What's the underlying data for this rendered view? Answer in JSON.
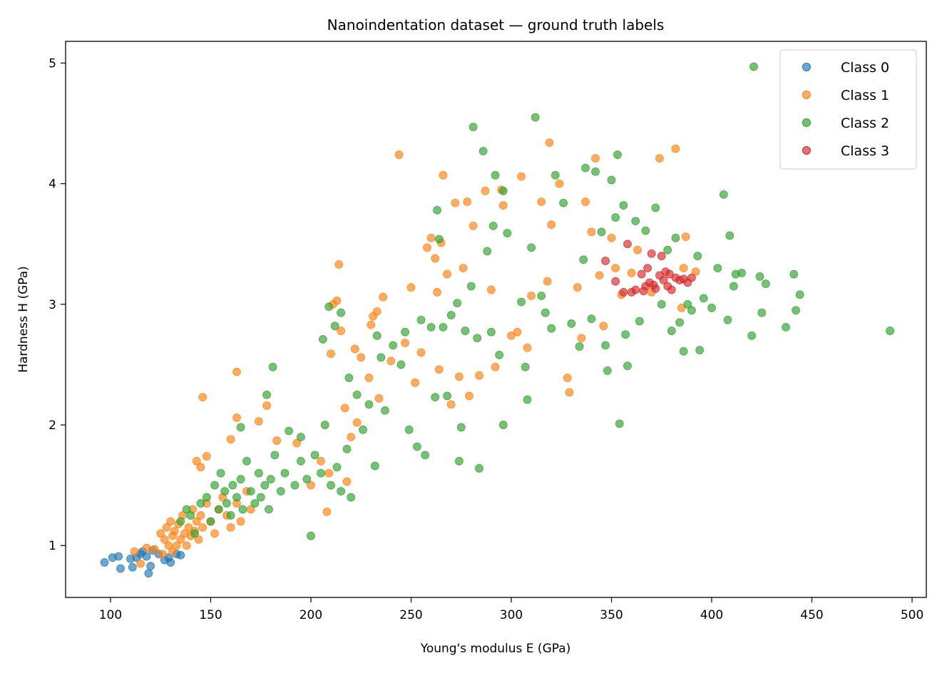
{
  "chart_data": {
    "type": "scatter",
    "title": "Nanoindentation dataset — ground truth labels",
    "xlabel": "Young's modulus E (GPa)",
    "ylabel": "Hardness H (GPa)",
    "xlim": [
      77.6,
      507.1
    ],
    "ylim": [
      0.57,
      5.18
    ],
    "xticks": [
      100,
      150,
      200,
      250,
      300,
      350,
      400,
      450,
      500
    ],
    "yticks": [
      1,
      2,
      3,
      4,
      5
    ],
    "grid": false,
    "legend_position": "top-right",
    "series": [
      {
        "name": "Class 0",
        "color": "#1f77b4",
        "points": [
          [
            97,
            0.86
          ],
          [
            101,
            0.9
          ],
          [
            104,
            0.91
          ],
          [
            105,
            0.81
          ],
          [
            110,
            0.89
          ],
          [
            111,
            0.82
          ],
          [
            113,
            0.9
          ],
          [
            115,
            0.93
          ],
          [
            116,
            0.95
          ],
          [
            118,
            0.91
          ],
          [
            119,
            0.77
          ],
          [
            120,
            0.83
          ],
          [
            121,
            0.96
          ],
          [
            124,
            0.93
          ],
          [
            127,
            0.88
          ],
          [
            129,
            0.9
          ],
          [
            130,
            0.86
          ],
          [
            133,
            0.93
          ],
          [
            135,
            0.92
          ]
        ]
      },
      {
        "name": "Class 1",
        "color": "#ff7f0e",
        "points": [
          [
            122,
            0.97
          ],
          [
            125,
            1.1
          ],
          [
            127,
            1.05
          ],
          [
            128,
            1.15
          ],
          [
            129,
            1.0
          ],
          [
            130,
            1.2
          ],
          [
            131,
            1.08
          ],
          [
            132,
            1.12
          ],
          [
            133,
            1.0
          ],
          [
            134,
            1.18
          ],
          [
            135,
            1.05
          ],
          [
            136,
            1.25
          ],
          [
            137,
            1.1
          ],
          [
            138,
            1.0
          ],
          [
            139,
            1.15
          ],
          [
            140,
            1.08
          ],
          [
            141,
            1.3
          ],
          [
            142,
            1.12
          ],
          [
            143,
            1.2
          ],
          [
            144,
            1.05
          ],
          [
            145,
            1.25
          ],
          [
            146,
            1.15
          ],
          [
            148,
            1.35
          ],
          [
            150,
            1.2
          ],
          [
            152,
            1.1
          ],
          [
            154,
            1.3
          ],
          [
            156,
            1.4
          ],
          [
            158,
            1.25
          ],
          [
            160,
            1.15
          ],
          [
            163,
            1.35
          ],
          [
            165,
            1.2
          ],
          [
            168,
            1.45
          ],
          [
            170,
            1.3
          ],
          [
            112,
            0.95
          ],
          [
            115,
            0.85
          ],
          [
            118,
            0.98
          ],
          [
            126,
            0.93
          ],
          [
            131,
            0.95
          ],
          [
            146,
            2.23
          ],
          [
            148,
            1.74
          ],
          [
            143,
            1.7
          ],
          [
            145,
            1.65
          ],
          [
            163,
            2.44
          ],
          [
            163,
            2.06
          ],
          [
            160,
            1.88
          ],
          [
            174,
            2.03
          ],
          [
            178,
            2.16
          ],
          [
            183,
            1.87
          ],
          [
            193,
            1.85
          ],
          [
            200,
            1.5
          ],
          [
            205,
            1.7
          ],
          [
            208,
            1.28
          ],
          [
            209,
            1.6
          ],
          [
            210,
            2.59
          ],
          [
            211,
            3.0
          ],
          [
            213,
            3.03
          ],
          [
            214,
            3.33
          ],
          [
            215,
            2.78
          ],
          [
            217,
            2.14
          ],
          [
            218,
            1.53
          ],
          [
            220,
            1.9
          ],
          [
            222,
            2.63
          ],
          [
            223,
            2.02
          ],
          [
            225,
            2.56
          ],
          [
            229,
            2.39
          ],
          [
            230,
            2.83
          ],
          [
            231,
            2.9
          ],
          [
            233,
            2.94
          ],
          [
            234,
            2.22
          ],
          [
            236,
            3.06
          ],
          [
            240,
            2.53
          ],
          [
            244,
            4.24
          ],
          [
            247,
            2.68
          ],
          [
            250,
            3.14
          ],
          [
            252,
            2.35
          ],
          [
            255,
            2.6
          ],
          [
            258,
            3.47
          ],
          [
            260,
            3.55
          ],
          [
            262,
            3.38
          ],
          [
            263,
            3.1
          ],
          [
            264,
            2.46
          ],
          [
            265,
            3.51
          ],
          [
            266,
            4.07
          ],
          [
            268,
            3.25
          ],
          [
            270,
            2.17
          ],
          [
            272,
            3.84
          ],
          [
            274,
            2.4
          ],
          [
            276,
            3.3
          ],
          [
            278,
            3.85
          ],
          [
            279,
            2.24
          ],
          [
            281,
            3.65
          ],
          [
            284,
            2.41
          ],
          [
            287,
            3.94
          ],
          [
            290,
            3.12
          ],
          [
            292,
            2.48
          ],
          [
            295,
            3.95
          ],
          [
            296,
            3.82
          ],
          [
            300,
            2.74
          ],
          [
            303,
            2.77
          ],
          [
            305,
            4.06
          ],
          [
            308,
            2.64
          ],
          [
            310,
            3.07
          ],
          [
            315,
            3.85
          ],
          [
            318,
            3.19
          ],
          [
            319,
            4.34
          ],
          [
            320,
            3.66
          ],
          [
            324,
            4.0
          ],
          [
            328,
            2.39
          ],
          [
            329,
            2.27
          ],
          [
            333,
            3.14
          ],
          [
            335,
            2.72
          ],
          [
            337,
            3.85
          ],
          [
            340,
            3.6
          ],
          [
            342,
            4.21
          ],
          [
            344,
            3.24
          ],
          [
            346,
            2.82
          ],
          [
            350,
            3.55
          ],
          [
            352,
            3.3
          ],
          [
            355,
            3.08
          ],
          [
            360,
            3.26
          ],
          [
            363,
            3.45
          ],
          [
            370,
            3.1
          ],
          [
            374,
            4.21
          ],
          [
            382,
            4.29
          ],
          [
            385,
            2.97
          ],
          [
            387,
            3.56
          ],
          [
            392,
            3.27
          ],
          [
            386,
            3.3
          ]
        ]
      },
      {
        "name": "Class 2",
        "color": "#2ca02c",
        "points": [
          [
            135,
            1.2
          ],
          [
            138,
            1.3
          ],
          [
            140,
            1.25
          ],
          [
            142,
            1.1
          ],
          [
            145,
            1.35
          ],
          [
            148,
            1.4
          ],
          [
            150,
            1.2
          ],
          [
            152,
            1.5
          ],
          [
            154,
            1.3
          ],
          [
            155,
            1.6
          ],
          [
            157,
            1.45
          ],
          [
            158,
            1.35
          ],
          [
            160,
            1.25
          ],
          [
            161,
            1.5
          ],
          [
            163,
            1.4
          ],
          [
            165,
            1.55
          ],
          [
            166,
            1.3
          ],
          [
            168,
            1.7
          ],
          [
            170,
            1.45
          ],
          [
            172,
            1.35
          ],
          [
            174,
            1.6
          ],
          [
            175,
            1.4
          ],
          [
            177,
            1.5
          ],
          [
            179,
            1.3
          ],
          [
            180,
            1.55
          ],
          [
            182,
            1.75
          ],
          [
            185,
            1.45
          ],
          [
            187,
            1.6
          ],
          [
            189,
            1.95
          ],
          [
            192,
            1.5
          ],
          [
            195,
            1.7
          ],
          [
            198,
            1.55
          ],
          [
            200,
            1.08
          ],
          [
            202,
            1.75
          ],
          [
            205,
            1.6
          ],
          [
            207,
            2.0
          ],
          [
            210,
            1.5
          ],
          [
            213,
            1.65
          ],
          [
            215,
            1.45
          ],
          [
            218,
            1.8
          ],
          [
            220,
            1.4
          ],
          [
            165,
            1.98
          ],
          [
            178,
            2.25
          ],
          [
            181,
            2.48
          ],
          [
            195,
            1.9
          ],
          [
            206,
            2.71
          ],
          [
            209,
            2.98
          ],
          [
            212,
            2.82
          ],
          [
            215,
            2.93
          ],
          [
            219,
            2.39
          ],
          [
            223,
            2.25
          ],
          [
            226,
            1.96
          ],
          [
            229,
            2.17
          ],
          [
            232,
            1.66
          ],
          [
            233,
            2.74
          ],
          [
            235,
            2.56
          ],
          [
            237,
            2.12
          ],
          [
            241,
            2.66
          ],
          [
            245,
            2.5
          ],
          [
            247,
            2.77
          ],
          [
            249,
            1.96
          ],
          [
            253,
            1.82
          ],
          [
            255,
            2.87
          ],
          [
            257,
            1.75
          ],
          [
            260,
            2.81
          ],
          [
            262,
            2.23
          ],
          [
            264,
            3.54
          ],
          [
            263,
            3.78
          ],
          [
            266,
            2.81
          ],
          [
            268,
            2.24
          ],
          [
            270,
            2.91
          ],
          [
            273,
            3.01
          ],
          [
            275,
            1.98
          ],
          [
            274,
            1.7
          ],
          [
            277,
            2.78
          ],
          [
            280,
            3.15
          ],
          [
            281,
            4.47
          ],
          [
            283,
            2.72
          ],
          [
            284,
            1.64
          ],
          [
            286,
            4.27
          ],
          [
            288,
            3.44
          ],
          [
            290,
            2.77
          ],
          [
            291,
            3.65
          ],
          [
            292,
            4.07
          ],
          [
            294,
            2.58
          ],
          [
            296,
            3.94
          ],
          [
            296,
            2.0
          ],
          [
            298,
            3.59
          ],
          [
            305,
            3.02
          ],
          [
            307,
            2.48
          ],
          [
            308,
            2.21
          ],
          [
            310,
            3.47
          ],
          [
            312,
            4.55
          ],
          [
            315,
            3.07
          ],
          [
            317,
            2.93
          ],
          [
            320,
            2.8
          ],
          [
            322,
            4.07
          ],
          [
            326,
            3.84
          ],
          [
            330,
            2.84
          ],
          [
            334,
            2.65
          ],
          [
            336,
            3.37
          ],
          [
            337,
            4.13
          ],
          [
            340,
            2.88
          ],
          [
            342,
            4.1
          ],
          [
            345,
            3.6
          ],
          [
            347,
            2.66
          ],
          [
            348,
            2.45
          ],
          [
            350,
            4.03
          ],
          [
            352,
            3.72
          ],
          [
            353,
            4.24
          ],
          [
            354,
            2.01
          ],
          [
            356,
            3.82
          ],
          [
            357,
            2.75
          ],
          [
            358,
            2.49
          ],
          [
            362,
            3.69
          ],
          [
            364,
            2.86
          ],
          [
            367,
            3.61
          ],
          [
            372,
            3.8
          ],
          [
            375,
            3.0
          ],
          [
            378,
            3.45
          ],
          [
            380,
            2.78
          ],
          [
            382,
            3.55
          ],
          [
            384,
            2.85
          ],
          [
            386,
            2.61
          ],
          [
            388,
            3.0
          ],
          [
            390,
            2.95
          ],
          [
            393,
            3.4
          ],
          [
            394,
            2.62
          ],
          [
            396,
            3.05
          ],
          [
            400,
            2.97
          ],
          [
            403,
            3.3
          ],
          [
            406,
            3.91
          ],
          [
            408,
            2.87
          ],
          [
            409,
            3.57
          ],
          [
            411,
            3.15
          ],
          [
            412,
            3.25
          ],
          [
            415,
            3.26
          ],
          [
            420,
            2.74
          ],
          [
            421,
            4.97
          ],
          [
            424,
            3.23
          ],
          [
            425,
            2.93
          ],
          [
            427,
            3.17
          ],
          [
            437,
            2.81
          ],
          [
            441,
            3.25
          ],
          [
            442,
            2.95
          ],
          [
            444,
            3.08
          ],
          [
            489,
            2.78
          ]
        ]
      },
      {
        "name": "Class 3",
        "color": "#d62728",
        "points": [
          [
            358,
            3.5
          ],
          [
            352,
            3.19
          ],
          [
            356,
            3.1
          ],
          [
            360,
            3.1
          ],
          [
            362,
            3.12
          ],
          [
            365,
            3.25
          ],
          [
            367,
            3.15
          ],
          [
            368,
            3.3
          ],
          [
            369,
            3.18
          ],
          [
            370,
            3.42
          ],
          [
            372,
            3.13
          ],
          [
            374,
            3.24
          ],
          [
            375,
            3.4
          ],
          [
            376,
            3.2
          ],
          [
            377,
            3.27
          ],
          [
            378,
            3.15
          ],
          [
            379,
            3.25
          ],
          [
            380,
            3.12
          ],
          [
            382,
            3.22
          ],
          [
            384,
            3.2
          ],
          [
            386,
            3.21
          ],
          [
            388,
            3.18
          ],
          [
            390,
            3.22
          ],
          [
            347,
            3.36
          ],
          [
            366,
            3.11
          ],
          [
            371,
            3.16
          ]
        ]
      }
    ]
  }
}
